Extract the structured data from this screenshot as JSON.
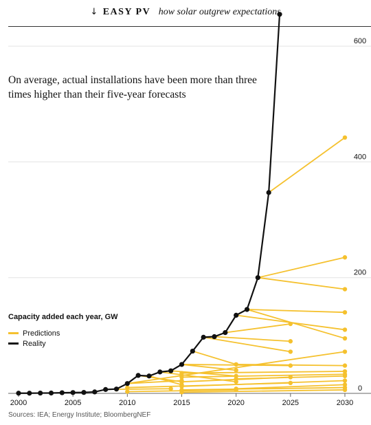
{
  "header": {
    "arrow": "↓",
    "brand": "EASY PV",
    "subtitle": "how solar outgrew expectations"
  },
  "annotation": "On average, actual installations have been more than three times higher than their five-year forecasts",
  "source": "Sources: IEA; Energy Institute; BloombergNEF",
  "colors": {
    "predictions": "#f5c12e",
    "reality": "#111111",
    "grid": "#e3e3e3"
  },
  "chart_data": {
    "type": "line",
    "xlim": [
      2000,
      2030
    ],
    "ylim": [
      0,
      650
    ],
    "x_ticks": [
      2000,
      2005,
      2010,
      2015,
      2020,
      2025,
      2030
    ],
    "y_ticks": [
      0,
      200,
      400,
      600
    ],
    "legend": {
      "title": "Capacity added each year, GW",
      "items": [
        {
          "label": "Predictions",
          "color": "#f5c12e"
        },
        {
          "label": "Reality",
          "color": "#111111"
        }
      ]
    },
    "reality": {
      "name": "Reality",
      "x": [
        2000,
        2001,
        2002,
        2003,
        2004,
        2005,
        2006,
        2007,
        2008,
        2009,
        2010,
        2011,
        2012,
        2013,
        2014,
        2015,
        2016,
        2017,
        2018,
        2019,
        2020,
        2021,
        2022,
        2023,
        2024
      ],
      "y": [
        0.3,
        0.3,
        0.5,
        0.6,
        1.1,
        1.4,
        1.6,
        2.5,
        6.7,
        7.5,
        17,
        31,
        30,
        37,
        39,
        50,
        73,
        97,
        98,
        105,
        135,
        145,
        200,
        347,
        655
      ]
    },
    "predictions": [
      {
        "x": [
          2009,
          2014
        ],
        "y": [
          7,
          8
        ]
      },
      {
        "x": [
          2010,
          2015
        ],
        "y": [
          17,
          22
        ]
      },
      {
        "x": [
          2011,
          2015
        ],
        "y": [
          31,
          20
        ]
      },
      {
        "x": [
          2012,
          2015
        ],
        "y": [
          30,
          15
        ]
      },
      {
        "x": [
          2013,
          2020
        ],
        "y": [
          37,
          20
        ]
      },
      {
        "x": [
          2014,
          2020
        ],
        "y": [
          39,
          30
        ]
      },
      {
        "x": [
          2015,
          2020
        ],
        "y": [
          50,
          40
        ]
      },
      {
        "x": [
          2016,
          2020
        ],
        "y": [
          73,
          50
        ]
      },
      {
        "x": [
          2017,
          2025
        ],
        "y": [
          97,
          72
        ]
      },
      {
        "x": [
          2018,
          2025
        ],
        "y": [
          98,
          90
        ]
      },
      {
        "x": [
          2019,
          2025
        ],
        "y": [
          105,
          120
        ]
      },
      {
        "x": [
          2020,
          2030
        ],
        "y": [
          135,
          110
        ]
      },
      {
        "x": [
          2021,
          2030
        ],
        "y": [
          145,
          95
        ]
      },
      {
        "x": [
          2021,
          2030
        ],
        "y": [
          145,
          140
        ]
      },
      {
        "x": [
          2022,
          2030
        ],
        "y": [
          200,
          180
        ]
      },
      {
        "x": [
          2022,
          2030
        ],
        "y": [
          200,
          235
        ]
      },
      {
        "x": [
          2023,
          2030
        ],
        "y": [
          347,
          442
        ]
      },
      {
        "x": [
          2010,
          2030
        ],
        "y": [
          17,
          72
        ]
      },
      {
        "x": [
          2015,
          2025
        ],
        "y": [
          50,
          48
        ]
      },
      {
        "x": [
          2020,
          2030
        ],
        "y": [
          50,
          48
        ]
      },
      {
        "x": [
          2015,
          2030
        ],
        "y": [
          35,
          38
        ]
      },
      {
        "x": [
          2015,
          2030
        ],
        "y": [
          28,
          33
        ]
      },
      {
        "x": [
          2015,
          2025
        ],
        "y": [
          20,
          28
        ]
      },
      {
        "x": [
          2020,
          2030
        ],
        "y": [
          25,
          30
        ]
      },
      {
        "x": [
          2015,
          2030
        ],
        "y": [
          12,
          22
        ]
      },
      {
        "x": [
          2010,
          2025
        ],
        "y": [
          10,
          18
        ]
      },
      {
        "x": [
          2015,
          2030
        ],
        "y": [
          6,
          10
        ]
      },
      {
        "x": [
          2020,
          2030
        ],
        "y": [
          8,
          15
        ]
      },
      {
        "x": [
          2010,
          2020
        ],
        "y": [
          3,
          6
        ]
      },
      {
        "x": [
          2015,
          2030
        ],
        "y": [
          2,
          6
        ]
      }
    ]
  }
}
